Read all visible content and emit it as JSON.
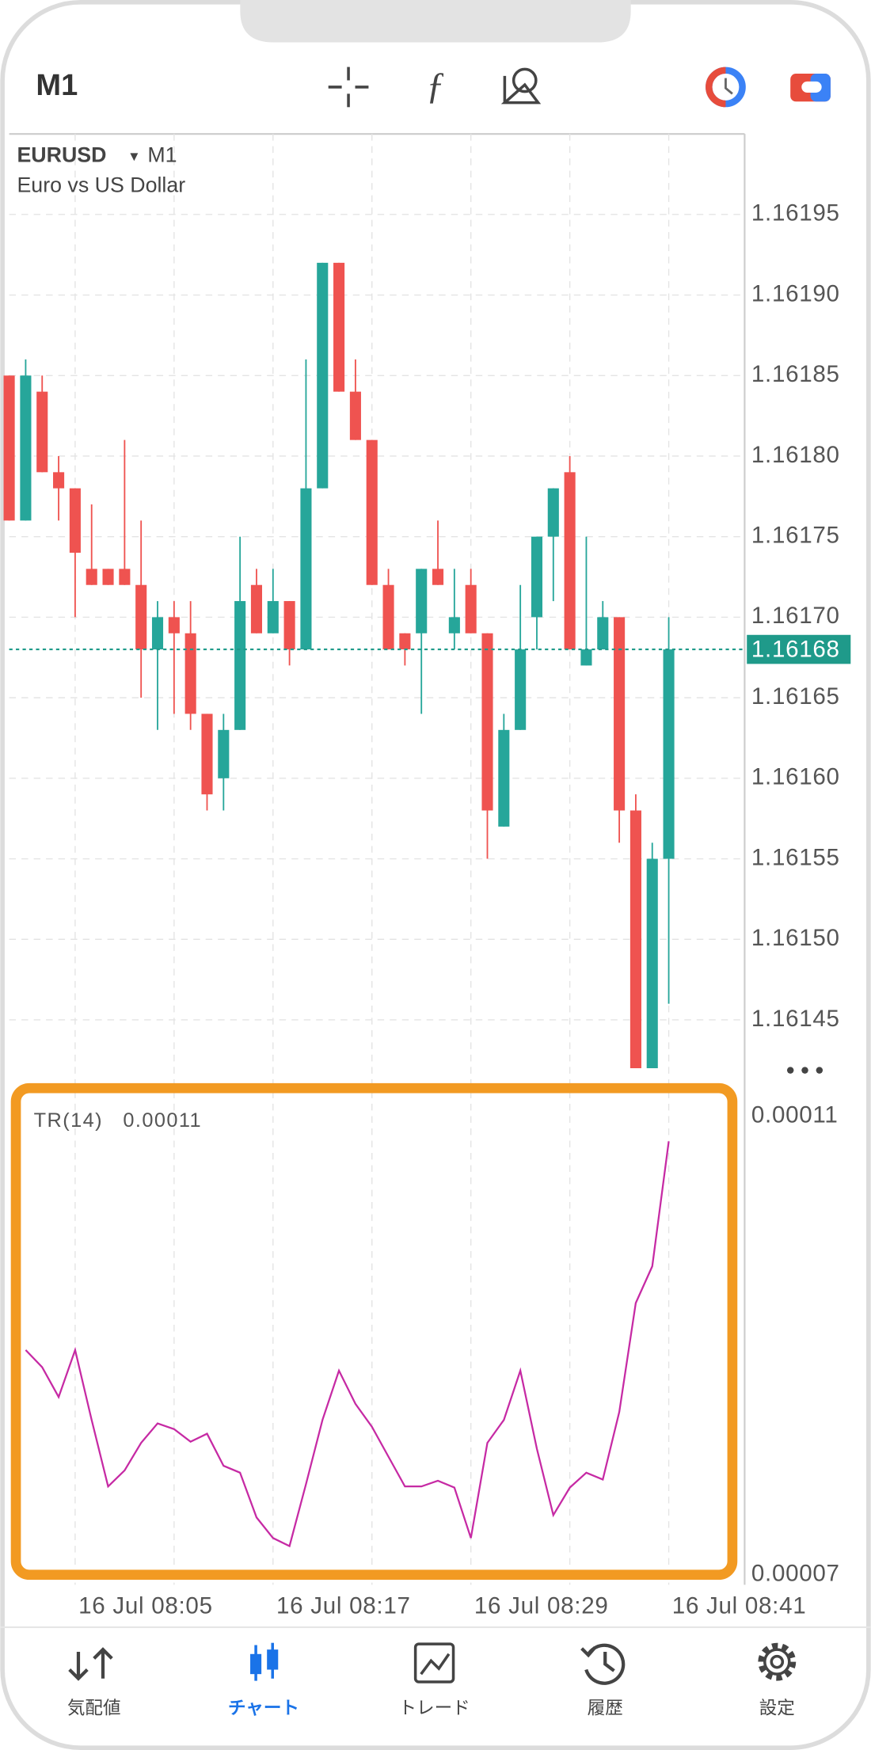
{
  "header": {
    "timeframe": "M1"
  },
  "chart_data": [
    {
      "type": "candlestick",
      "title": "EURUSD",
      "timeframe": "M1",
      "subtitle": "Euro vs US Dollar",
      "categories": [
        null,
        null,
        null,
        null,
        "16 Jul 08:05",
        null,
        null,
        null,
        null,
        null,
        null,
        null,
        null,
        null,
        null,
        null,
        "16 Jul 08:17",
        null,
        null,
        null,
        null,
        null,
        null,
        null,
        null,
        null,
        null,
        null,
        "16 Jul 08:29",
        null,
        null,
        null,
        null,
        null,
        null,
        null,
        null,
        null,
        null,
        null,
        "16 Jul 08:41"
      ],
      "open": [
        1.16185,
        1.16176,
        1.16184,
        1.16179,
        1.16178,
        1.16173,
        1.16173,
        1.16173,
        1.16172,
        1.16168,
        1.1617,
        1.16169,
        1.16164,
        1.1616,
        1.16163,
        1.16172,
        1.16169,
        1.16171,
        1.16168,
        1.16178,
        1.16192,
        1.16184,
        1.16181,
        1.16172,
        1.16169,
        1.16169,
        1.16173,
        1.16169,
        1.16172,
        1.16169,
        1.16157,
        1.16163,
        1.1617,
        1.16175,
        1.16179,
        1.16167,
        1.16168,
        1.1617,
        1.16158,
        1.16142,
        1.16155
      ],
      "high": [
        1.16185,
        1.16186,
        1.16185,
        1.1618,
        1.16178,
        1.16177,
        1.16173,
        1.16181,
        1.16176,
        1.16171,
        1.16171,
        1.16171,
        1.16164,
        1.16164,
        1.16175,
        1.16173,
        1.16173,
        1.16171,
        1.16186,
        1.16192,
        1.16192,
        1.16186,
        1.16181,
        1.16173,
        1.16169,
        1.16173,
        1.16176,
        1.16173,
        1.16173,
        1.16169,
        1.16164,
        1.16172,
        1.16175,
        1.16178,
        1.1618,
        1.16175,
        1.16171,
        1.1617,
        1.16159,
        1.16156,
        1.1617
      ],
      "low": [
        1.16176,
        1.16176,
        1.16179,
        1.16176,
        1.1617,
        1.16172,
        1.16172,
        1.16172,
        1.16165,
        1.16163,
        1.16164,
        1.16163,
        1.16158,
        1.16158,
        1.16163,
        1.16169,
        1.16169,
        1.16167,
        1.16168,
        1.16178,
        1.16184,
        1.16181,
        1.16172,
        1.16168,
        1.16167,
        1.16164,
        1.16172,
        1.16168,
        1.16169,
        1.16155,
        1.16157,
        1.16163,
        1.16168,
        1.16171,
        1.16168,
        1.16167,
        1.16168,
        1.16156,
        1.16142,
        1.16142,
        1.16146
      ],
      "close": [
        1.16176,
        1.16185,
        1.16179,
        1.16178,
        1.16174,
        1.16172,
        1.16172,
        1.16172,
        1.16168,
        1.1617,
        1.16169,
        1.16164,
        1.16159,
        1.16163,
        1.16171,
        1.16169,
        1.16171,
        1.16168,
        1.16178,
        1.16192,
        1.16184,
        1.16181,
        1.16172,
        1.16168,
        1.16168,
        1.16173,
        1.16172,
        1.1617,
        1.16169,
        1.16158,
        1.16163,
        1.16168,
        1.16175,
        1.16178,
        1.16168,
        1.16168,
        1.1617,
        1.16158,
        1.16142,
        1.16155,
        1.16168
      ],
      "up_color": "#26a69a",
      "down_color": "#ef5350",
      "last": 1.16168,
      "ylim": [
        1.161418,
        1.162
      ],
      "yticks": [
        1.16145,
        {
          "value": 1.1615,
          "label": "1.16150"
        },
        1.16155,
        {
          "value": 1.1616,
          "label": "1.16160"
        },
        1.16165,
        {
          "value": 1.1617,
          "label": "1.16170"
        },
        1.16175,
        {
          "value": 1.1618,
          "label": "1.16180"
        },
        1.16185,
        {
          "value": 1.1619,
          "label": "1.16190"
        },
        1.16195
      ],
      "grid": true
    },
    {
      "type": "line",
      "title": "TR(14)",
      "subtitle": "0.00011",
      "color": "#c62aa4",
      "values": [
        null,
        8.96e-05,
        8.81e-05,
        8.55e-05,
        8.96e-05,
        8.35e-05,
        7.77e-05,
        7.91e-05,
        8.15e-05,
        8.32e-05,
        8.27e-05,
        8.16e-05,
        8.23e-05,
        7.95e-05,
        7.89e-05,
        7.5e-05,
        7.32e-05,
        7.25e-05,
        7.79e-05,
        8.35e-05,
        8.78e-05,
        8.49e-05,
        8.29e-05,
        8.03e-05,
        7.77e-05,
        7.77e-05,
        7.82e-05,
        7.76e-05,
        7.32e-05,
        8.15e-05,
        8.35e-05,
        8.78e-05,
        8.1e-05,
        7.52e-05,
        7.76e-05,
        7.89e-05,
        7.83e-05,
        8.42e-05,
        9.37e-05,
        9.69e-05,
        0.0001078
      ],
      "ylim": [
        6.912e-05,
        0.00011146
      ],
      "yticks": [
        0.00011,
        7e-05
      ]
    }
  ],
  "tabs": [
    "気配値",
    "チャート",
    "トレード",
    "履歴",
    "設定"
  ],
  "active_tab": 1
}
